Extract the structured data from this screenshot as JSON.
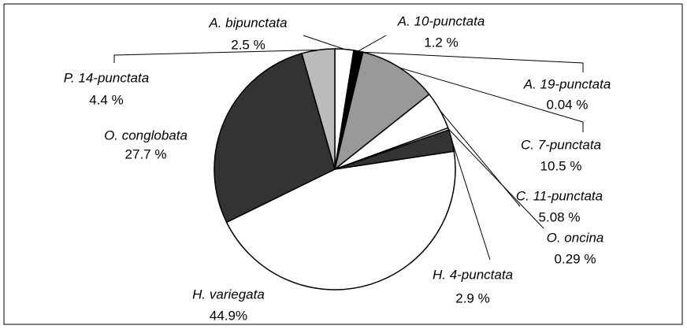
{
  "chart_data": {
    "type": "pie",
    "categories": [
      "A. bipunctata",
      "A. 10-punctata",
      "A. 19-punctata",
      "C. 7-punctata",
      "C. 11-punctata",
      "O. oncina",
      "H. 4-punctata",
      "H. variegata",
      "O. conglobata",
      "P. 14-punctata"
    ],
    "values": [
      2.5,
      1.2,
      0.04,
      10.5,
      5.08,
      0.29,
      2.9,
      44.9,
      27.7,
      4.4
    ],
    "value_labels": [
      "2.5 %",
      "1.2 %",
      "0.04 %",
      "10.5 %",
      "5.08 %",
      "0.29 %",
      "2.9 %",
      "44.9%",
      "27.7 %",
      "4.4 %"
    ],
    "colors": [
      "#ffffff",
      "#000000",
      "#ffffff",
      "#999999",
      "#ffffff",
      "#ffffff",
      "#333333",
      "#ffffff",
      "#333333",
      "#bbbbbb"
    ]
  }
}
